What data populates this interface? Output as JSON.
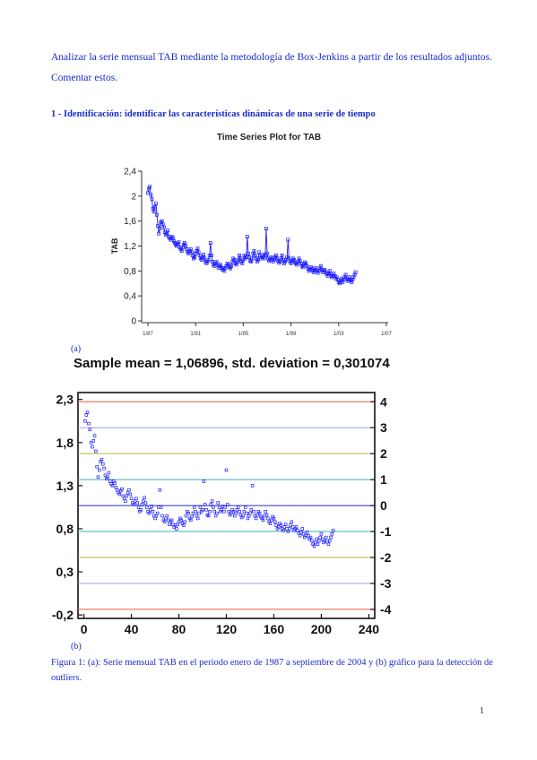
{
  "intro_text": "Analizar la serie mensual TAB mediante la metodología de Box-Jenkins a partir de los resultados adjuntos. Comentar estos.",
  "section_heading": "1 - Identificación: identificar las características dinámicas de una serie de tiempo",
  "fig_a_label": "(a)",
  "fig_b_label": "(b)",
  "stats_line": "Sample mean = 1,06896, std. deviation = 0,301074",
  "caption": "Figura 1: (a): Serie mensual TAB en el periodo enero de 1987 a septiembre de 2004 y (b) gráfico para la detección de outliers.",
  "page_number": "1",
  "chart_data": [
    {
      "type": "line",
      "title": "Time Series Plot for TAB",
      "ylabel": "TAB",
      "xlabel": "",
      "x_ticks": [
        "1/87",
        "1/91",
        "1/95",
        "1/99",
        "1/03",
        "1/07"
      ],
      "y_ticks": [
        "0",
        "0,4",
        "0,8",
        "1,2",
        "1,6",
        "2",
        "2,4"
      ],
      "ylim": [
        0,
        2.4
      ],
      "grid": false,
      "marker_color": "#1a1aff",
      "x_start": "1/87",
      "x_end": "9/04",
      "values": [
        2.05,
        2.12,
        2.15,
        2.02,
        1.95,
        1.8,
        1.75,
        1.82,
        1.88,
        1.7,
        1.52,
        1.4,
        1.48,
        1.58,
        1.6,
        1.55,
        1.5,
        1.42,
        1.38,
        1.4,
        1.45,
        1.35,
        1.32,
        1.3,
        1.35,
        1.33,
        1.28,
        1.25,
        1.22,
        1.2,
        1.24,
        1.26,
        1.18,
        1.15,
        1.12,
        1.18,
        1.22,
        1.25,
        1.2,
        1.15,
        1.1,
        1.08,
        1.12,
        1.15,
        1.1,
        1.05,
        1.0,
        1.02,
        1.08,
        1.12,
        1.16,
        1.1,
        1.05,
        1.0,
        0.98,
        1.02,
        1.06,
        1.0,
        0.95,
        0.92,
        0.95,
        0.98,
        1.05,
        1.25,
        1.05,
        0.95,
        0.9,
        0.88,
        0.92,
        0.95,
        0.9,
        0.85,
        0.88,
        0.9,
        0.85,
        0.82,
        0.84,
        0.8,
        0.85,
        0.88,
        0.92,
        0.9,
        0.86,
        0.84,
        0.88,
        0.95,
        1.0,
        0.98,
        0.92,
        0.9,
        0.94,
        0.98,
        1.05,
        1.0,
        0.95,
        0.92,
        0.98,
        1.05,
        1.0,
        1.02,
        1.35,
        1.08,
        1.02,
        0.96,
        0.95,
        1.0,
        1.08,
        1.12,
        1.05,
        1.0,
        0.95,
        0.98,
        1.1,
        1.05,
        1.0,
        1.02,
        1.06,
        1.0,
        1.05,
        1.48,
        1.08,
        1.0,
        0.96,
        0.98,
        1.02,
        1.0,
        0.95,
        0.98,
        1.02,
        1.05,
        1.0,
        0.96,
        0.93,
        0.95,
        1.0,
        1.05,
        0.98,
        0.92,
        0.95,
        0.98,
        1.02,
        1.3,
        1.0,
        0.95,
        0.92,
        0.96,
        1.0,
        0.98,
        0.94,
        0.92,
        0.9,
        0.95,
        1.0,
        0.96,
        0.92,
        0.88,
        0.86,
        0.9,
        0.94,
        0.92,
        0.88,
        0.84,
        0.8,
        0.82,
        0.86,
        0.84,
        0.8,
        0.78,
        0.82,
        0.85,
        0.8,
        0.77,
        0.8,
        0.84,
        0.88,
        0.82,
        0.78,
        0.8,
        0.82,
        0.78,
        0.75,
        0.72,
        0.76,
        0.8,
        0.74,
        0.7,
        0.72,
        0.76,
        0.72,
        0.68,
        0.7,
        0.66,
        0.62,
        0.6,
        0.64,
        0.68,
        0.62,
        0.66,
        0.7,
        0.74,
        0.68,
        0.64,
        0.66,
        0.7,
        0.65,
        0.62,
        0.66,
        0.7,
        0.74,
        0.78
      ]
    },
    {
      "type": "scatter",
      "title": "",
      "xlabel": "",
      "ylabel": "",
      "x_ticks": [
        "0",
        "40",
        "80",
        "120",
        "160",
        "200",
        "240"
      ],
      "xlim": [
        -5,
        245
      ],
      "y_ticks_left": [
        "2,3",
        "1,8",
        "1,3",
        "0,8",
        "0,3",
        "-0,2"
      ],
      "y_ticks_right": [
        "4",
        "3",
        "2",
        "1",
        "0",
        "-1",
        "-2",
        "-3",
        "-4"
      ],
      "ylim": [
        -0.24,
        2.38
      ],
      "grid": false,
      "mean": 1.06896,
      "sd": 0.301074,
      "marker_color": "#1a1aff",
      "band_lines": [
        {
          "k": 4,
          "color": "#e06040"
        },
        {
          "k": 3,
          "color": "#9aa0ee"
        },
        {
          "k": 2,
          "color": "#b8b040"
        },
        {
          "k": 1,
          "color": "#40b0b0"
        },
        {
          "k": 0,
          "color": "#2030c0"
        },
        {
          "k": -1,
          "color": "#40b0b0"
        },
        {
          "k": -2,
          "color": "#b8b040"
        },
        {
          "k": -3,
          "color": "#9aa0ee"
        },
        {
          "k": -4,
          "color": "#e06040"
        }
      ]
    }
  ]
}
